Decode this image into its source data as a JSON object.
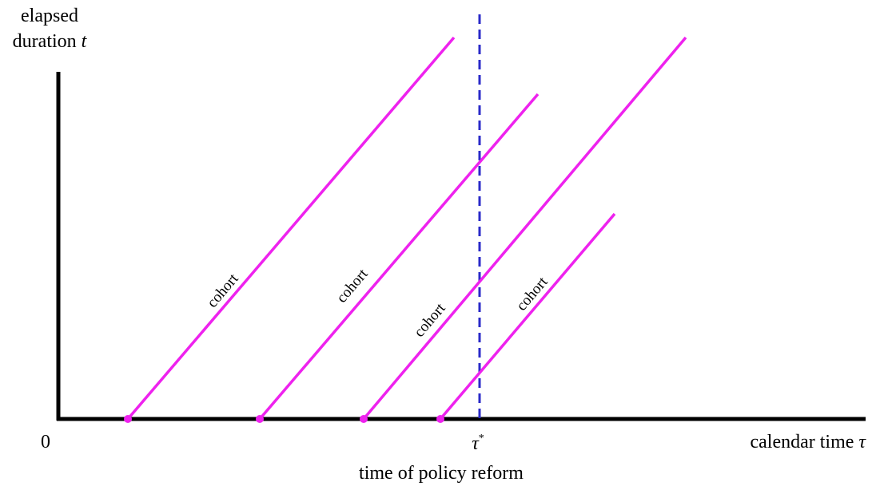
{
  "y_axis_label": {
    "line1": "elapsed",
    "line2": "duration",
    "symbol": "t"
  },
  "x_axis_label": {
    "text": "calendar time",
    "symbol": "τ"
  },
  "origin_label": "0",
  "reform_marker": {
    "symbol": "τ",
    "superscript": "*",
    "caption": "time of policy reform"
  },
  "cohorts": [
    {
      "label": "cohort"
    },
    {
      "label": "cohort"
    },
    {
      "label": "cohort"
    },
    {
      "label": "cohort"
    }
  ]
}
